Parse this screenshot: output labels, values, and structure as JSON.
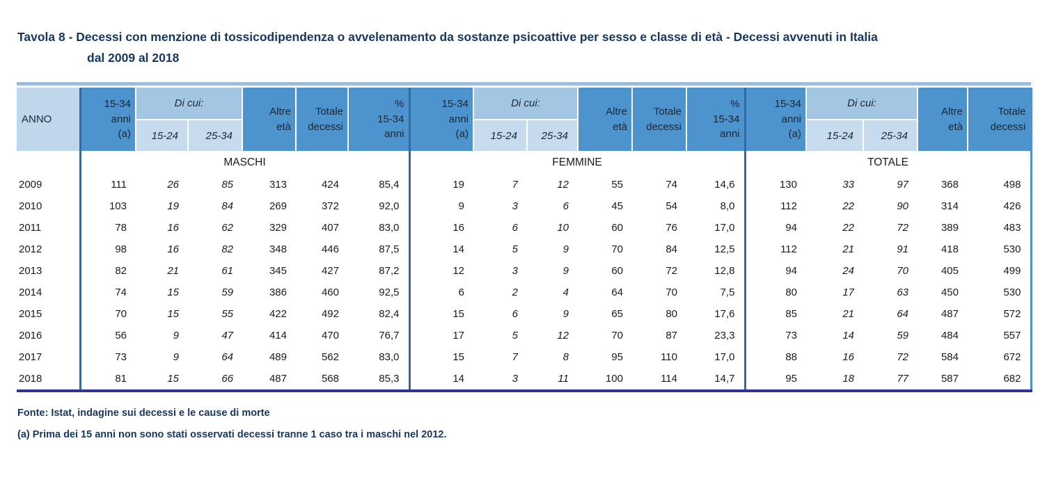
{
  "title": {
    "line1": "Tavola 8 - Decessi con menzione di tossicodipendenza o avvelenamento da sostanze psicoattive per sesso e classe di età - Decessi avvenuti in Italia",
    "line2": "dal 2009 al 2018"
  },
  "table": {
    "anno_header": "ANNO",
    "col_headers": {
      "age_15_34": "15-34\nanni\n(a)",
      "di_cui": "Di cui:",
      "sub_15_24": "15-24",
      "sub_25_34": "25-34",
      "altre_eta": "Altre\netà",
      "totale_decessi": "Totale\ndecessi",
      "pct_15_34": "%\n15-34\nanni"
    },
    "sections": {
      "maschi": "MASCHI",
      "femmine": "FEMMINE",
      "totale": "TOTALE"
    },
    "rows": [
      {
        "year": "2009",
        "m": [
          "111",
          "26",
          "85",
          "313",
          "424",
          "85,4"
        ],
        "f": [
          "19",
          "7",
          "12",
          "55",
          "74",
          "14,6"
        ],
        "t": [
          "130",
          "33",
          "97",
          "368",
          "498"
        ]
      },
      {
        "year": "2010",
        "m": [
          "103",
          "19",
          "84",
          "269",
          "372",
          "92,0"
        ],
        "f": [
          "9",
          "3",
          "6",
          "45",
          "54",
          "8,0"
        ],
        "t": [
          "112",
          "22",
          "90",
          "314",
          "426"
        ]
      },
      {
        "year": "2011",
        "m": [
          "78",
          "16",
          "62",
          "329",
          "407",
          "83,0"
        ],
        "f": [
          "16",
          "6",
          "10",
          "60",
          "76",
          "17,0"
        ],
        "t": [
          "94",
          "22",
          "72",
          "389",
          "483"
        ]
      },
      {
        "year": "2012",
        "m": [
          "98",
          "16",
          "82",
          "348",
          "446",
          "87,5"
        ],
        "f": [
          "14",
          "5",
          "9",
          "70",
          "84",
          "12,5"
        ],
        "t": [
          "112",
          "21",
          "91",
          "418",
          "530"
        ]
      },
      {
        "year": "2013",
        "m": [
          "82",
          "21",
          "61",
          "345",
          "427",
          "87,2"
        ],
        "f": [
          "12",
          "3",
          "9",
          "60",
          "72",
          "12,8"
        ],
        "t": [
          "94",
          "24",
          "70",
          "405",
          "499"
        ]
      },
      {
        "year": "2014",
        "m": [
          "74",
          "15",
          "59",
          "386",
          "460",
          "92,5"
        ],
        "f": [
          "6",
          "2",
          "4",
          "64",
          "70",
          "7,5"
        ],
        "t": [
          "80",
          "17",
          "63",
          "450",
          "530"
        ]
      },
      {
        "year": "2015",
        "m": [
          "70",
          "15",
          "55",
          "422",
          "492",
          "82,4"
        ],
        "f": [
          "15",
          "6",
          "9",
          "65",
          "80",
          "17,6"
        ],
        "t": [
          "85",
          "21",
          "64",
          "487",
          "572"
        ]
      },
      {
        "year": "2016",
        "m": [
          "56",
          "9",
          "47",
          "414",
          "470",
          "76,7"
        ],
        "f": [
          "17",
          "5",
          "12",
          "70",
          "87",
          "23,3"
        ],
        "t": [
          "73",
          "14",
          "59",
          "484",
          "557"
        ]
      },
      {
        "year": "2017",
        "m": [
          "73",
          "9",
          "64",
          "489",
          "562",
          "83,0"
        ],
        "f": [
          "15",
          "7",
          "8",
          "95",
          "110",
          "17,0"
        ],
        "t": [
          "88",
          "16",
          "72",
          "584",
          "672"
        ]
      },
      {
        "year": "2018",
        "m": [
          "81",
          "15",
          "66",
          "487",
          "568",
          "85,3"
        ],
        "f": [
          "14",
          "3",
          "11",
          "100",
          "114",
          "14,7"
        ],
        "t": [
          "95",
          "18",
          "77",
          "587",
          "682"
        ]
      }
    ]
  },
  "footer": {
    "fonte": "Fonte: Istat, indagine sui decessi e le cause di morte",
    "nota": "(a) Prima dei 15 anni non sono stati osservati decessi tranne 1 caso tra i maschi nel 2012."
  },
  "colors": {
    "title_text": "#17375E",
    "header_medium_blue": "#4D93CE",
    "header_light_blue": "#BFD7EA",
    "di_cui_blue": "#A3C7E3",
    "sub_header_blue": "#C6DCEE",
    "top_bar": "#9FBDDA",
    "section_separator": "#36699B",
    "bottom_bar": "#2F3490"
  }
}
